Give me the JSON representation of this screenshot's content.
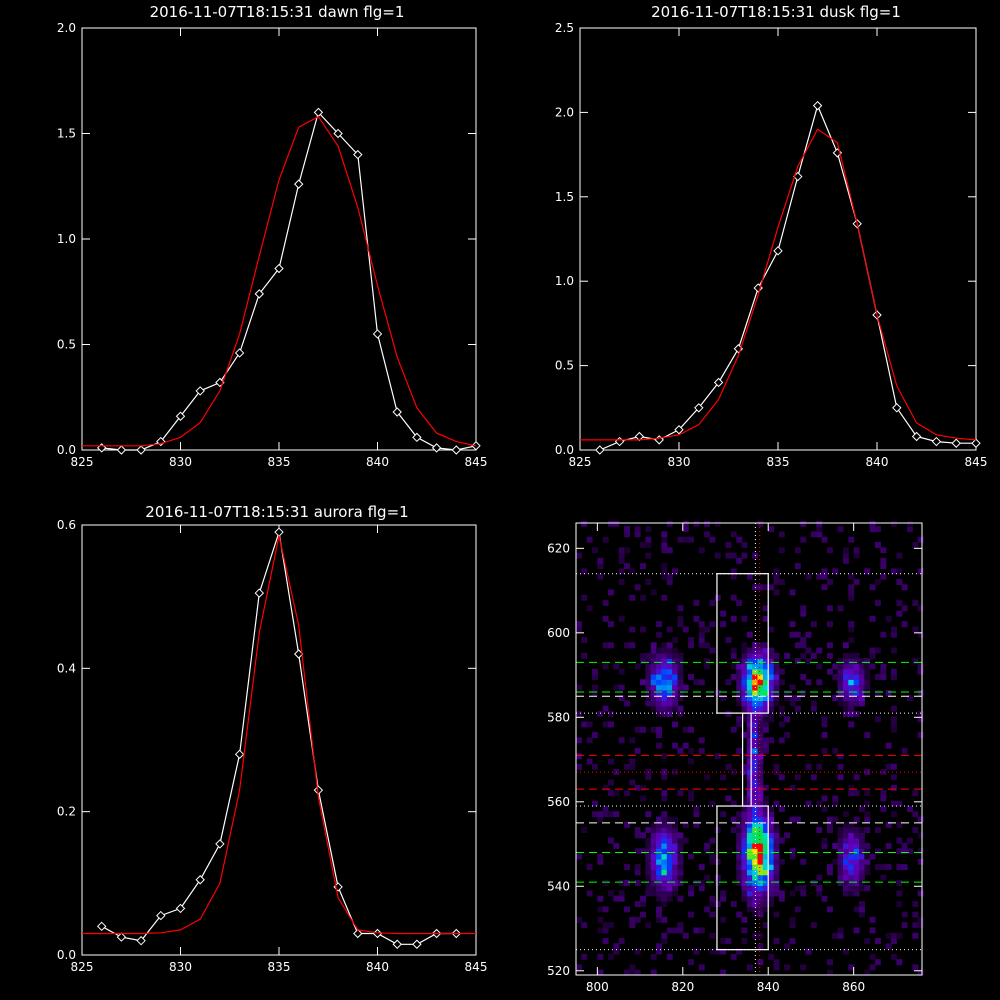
{
  "chart_data": [
    {
      "type": "line",
      "title": "2016-11-07T18:15:31 dawn flg=1",
      "xlim": [
        825,
        845
      ],
      "ylim": [
        0,
        2.0
      ],
      "xticks": [
        825,
        830,
        835,
        840,
        845
      ],
      "xtick_labels": [
        "825",
        "830",
        "835",
        "840",
        "845"
      ],
      "yticks": [
        0,
        0.5,
        1.0,
        1.5,
        2.0
      ],
      "ytick_labels": [
        "0.0",
        "0.5",
        "1.0",
        "1.5",
        "2.0"
      ],
      "series": [
        {
          "color": "#ffffff",
          "marker": "diamond",
          "x": [
            826,
            827,
            828,
            829,
            830,
            831,
            832,
            833,
            834,
            835,
            836,
            837,
            838,
            839,
            840,
            841,
            842,
            843,
            844,
            845
          ],
          "y": [
            0.01,
            0.0,
            0.0,
            0.04,
            0.16,
            0.28,
            0.32,
            0.46,
            0.74,
            0.86,
            1.26,
            1.6,
            1.5,
            1.4,
            0.55,
            0.18,
            0.06,
            0.01,
            0.0,
            0.02
          ]
        },
        {
          "color": "#ff0000",
          "marker": "none",
          "x": [
            825,
            826,
            827,
            828,
            829,
            830,
            831,
            832,
            833,
            834,
            835,
            836,
            837,
            838,
            839,
            840,
            841,
            842,
            843,
            844,
            845
          ],
          "y": [
            0.02,
            0.02,
            0.02,
            0.02,
            0.03,
            0.06,
            0.13,
            0.28,
            0.55,
            0.92,
            1.28,
            1.53,
            1.58,
            1.44,
            1.15,
            0.78,
            0.44,
            0.2,
            0.08,
            0.04,
            0.02
          ]
        }
      ]
    },
    {
      "type": "line",
      "title": "2016-11-07T18:15:31 dusk flg=1",
      "xlim": [
        825,
        845
      ],
      "ylim": [
        0,
        2.5
      ],
      "xticks": [
        825,
        830,
        835,
        840,
        845
      ],
      "xtick_labels": [
        "825",
        "830",
        "835",
        "840",
        "845"
      ],
      "yticks": [
        0,
        0.5,
        1.0,
        1.5,
        2.0,
        2.5
      ],
      "ytick_labels": [
        "0.0",
        "0.5",
        "1.0",
        "1.5",
        "2.0",
        "2.5"
      ],
      "series": [
        {
          "color": "#ffffff",
          "marker": "diamond",
          "x": [
            826,
            827,
            828,
            829,
            830,
            831,
            832,
            833,
            834,
            835,
            836,
            837,
            838,
            839,
            840,
            841,
            842,
            843,
            844,
            845
          ],
          "y": [
            0.0,
            0.05,
            0.08,
            0.06,
            0.12,
            0.25,
            0.4,
            0.6,
            0.96,
            1.18,
            1.62,
            2.04,
            1.76,
            1.34,
            0.8,
            0.25,
            0.08,
            0.05,
            0.04,
            0.04
          ]
        },
        {
          "color": "#ff0000",
          "marker": "none",
          "x": [
            825,
            826,
            827,
            828,
            829,
            830,
            831,
            832,
            833,
            834,
            835,
            836,
            837,
            838,
            839,
            840,
            841,
            842,
            843,
            844,
            845
          ],
          "y": [
            0.06,
            0.06,
            0.06,
            0.06,
            0.07,
            0.09,
            0.15,
            0.3,
            0.56,
            0.92,
            1.32,
            1.68,
            1.9,
            1.82,
            1.34,
            0.8,
            0.38,
            0.16,
            0.09,
            0.07,
            0.06
          ]
        }
      ]
    },
    {
      "type": "line",
      "title": "2016-11-07T18:15:31 aurora flg=1",
      "xlim": [
        825,
        845
      ],
      "ylim": [
        0,
        0.6
      ],
      "xticks": [
        825,
        830,
        835,
        840,
        845
      ],
      "xtick_labels": [
        "825",
        "830",
        "835",
        "840",
        "845"
      ],
      "yticks": [
        0,
        0.2,
        0.4,
        0.6
      ],
      "ytick_labels": [
        "0.0",
        "0.2",
        "0.4",
        "0.6"
      ],
      "series": [
        {
          "color": "#ffffff",
          "marker": "diamond",
          "x": [
            826,
            827,
            828,
            829,
            830,
            831,
            832,
            833,
            834,
            835,
            836,
            837,
            838,
            839,
            840,
            841,
            842,
            843,
            844
          ],
          "y": [
            0.04,
            0.025,
            0.02,
            0.055,
            0.065,
            0.105,
            0.155,
            0.28,
            0.505,
            0.59,
            0.42,
            0.23,
            0.095,
            0.03,
            0.03,
            0.015,
            0.015,
            0.03,
            0.03
          ]
        },
        {
          "color": "#ff0000",
          "marker": "none",
          "x": [
            825,
            826,
            827,
            828,
            829,
            830,
            831,
            832,
            833,
            834,
            835,
            836,
            837,
            838,
            839,
            840,
            841,
            842,
            843,
            844,
            845
          ],
          "y": [
            0.03,
            0.03,
            0.03,
            0.03,
            0.031,
            0.035,
            0.05,
            0.1,
            0.23,
            0.45,
            0.585,
            0.46,
            0.22,
            0.08,
            0.035,
            0.031,
            0.03,
            0.03,
            0.03,
            0.03,
            0.03
          ]
        }
      ]
    },
    {
      "type": "heatmap",
      "xlim": [
        795,
        876
      ],
      "ylim": [
        519,
        626
      ],
      "xticks": [
        800,
        820,
        840,
        860
      ],
      "xtick_labels": [
        "800",
        "820",
        "840",
        "860"
      ],
      "yticks": [
        520,
        540,
        560,
        580,
        600,
        620
      ],
      "ytick_labels": [
        "520",
        "540",
        "560",
        "580",
        "600",
        "620"
      ],
      "colormap": "rainbow-on-black",
      "background": "#000000",
      "blobs": [
        {
          "x": 815,
          "y": 588,
          "peak": 0.58,
          "sx": 2.2,
          "sy": 4.0
        },
        {
          "x": 837,
          "y": 588,
          "peak": 1.0,
          "sx": 2.3,
          "sy": 4.0
        },
        {
          "x": 859,
          "y": 588,
          "peak": 0.45,
          "sx": 2.0,
          "sy": 3.5
        },
        {
          "x": 815,
          "y": 546,
          "peak": 0.55,
          "sx": 2.2,
          "sy": 5.0
        },
        {
          "x": 837,
          "y": 547,
          "peak": 1.0,
          "sx": 2.3,
          "sy": 6.0
        },
        {
          "x": 859,
          "y": 546,
          "peak": 0.4,
          "sx": 2.0,
          "sy": 4.5
        },
        {
          "x": 836,
          "y": 568,
          "peak": 0.35,
          "sx": 1.2,
          "sy": 9.0
        }
      ],
      "boxes": [
        {
          "x": [
            828,
            840
          ],
          "y": [
            581,
            614
          ],
          "color": "#ffffff"
        },
        {
          "x": [
            828,
            840
          ],
          "y": [
            525,
            559
          ],
          "color": "#ffffff"
        },
        {
          "x": [
            834,
            836
          ],
          "y": [
            559,
            581
          ],
          "color": "#ffffff"
        }
      ],
      "hlines": [
        {
          "y": 614,
          "color": "#ffffff",
          "style": "dotted"
        },
        {
          "y": 593,
          "color": "#00ff00",
          "style": "dashed"
        },
        {
          "y": 586,
          "color": "#00ff00",
          "style": "dashed"
        },
        {
          "y": 585,
          "color": "#ffffff",
          "style": "dashed"
        },
        {
          "y": 581,
          "color": "#ffffff",
          "style": "dotted"
        },
        {
          "y": 571,
          "color": "#ff0000",
          "style": "dashed"
        },
        {
          "y": 567,
          "color": "#ff0000",
          "style": "dotted"
        },
        {
          "y": 563,
          "color": "#ff0000",
          "style": "dashed"
        },
        {
          "y": 559,
          "color": "#ffffff",
          "style": "dotted"
        },
        {
          "y": 555,
          "color": "#ffffff",
          "style": "dashed"
        },
        {
          "y": 548,
          "color": "#00ff00",
          "style": "dashed"
        },
        {
          "y": 541,
          "color": "#00ff00",
          "style": "dashed"
        },
        {
          "y": 525,
          "color": "#ffffff",
          "style": "dotted"
        }
      ],
      "vlines": [
        {
          "x": 837,
          "color": "#ffffff",
          "style": "dotted"
        },
        {
          "x": 838,
          "color": "#ff0000",
          "style": "dotted"
        }
      ]
    }
  ]
}
